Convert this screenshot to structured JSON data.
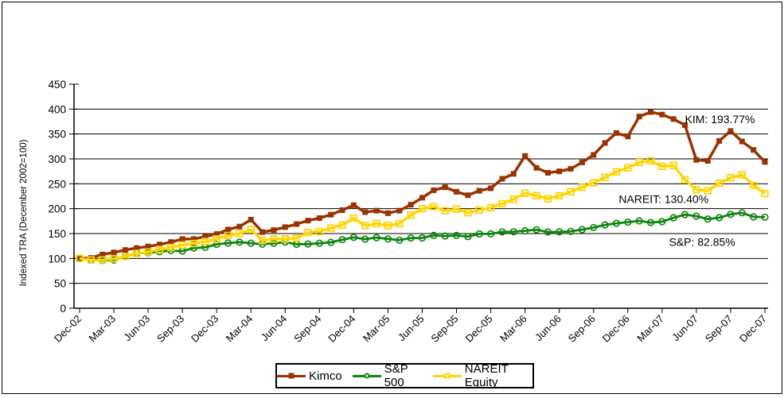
{
  "figure": {
    "background": "#FFFFFF",
    "border_color": "#000000",
    "axis_color": "#000000",
    "gridline_color": "#000000"
  },
  "chart_data": {
    "type": "line",
    "title": "",
    "xlabel": "",
    "ylabel": "Indexed TRA (December 2002=100)",
    "ylim": [
      0,
      450
    ],
    "yticks": [
      0,
      50,
      100,
      150,
      200,
      250,
      300,
      350,
      400,
      450
    ],
    "xtick_labels": [
      "Dec-02",
      "Mar-03",
      "Jun-03",
      "Sep-03",
      "Dec-03",
      "Mar-04",
      "Jun-04",
      "Sep-04",
      "Dec-04",
      "Mar-05",
      "Jun-05",
      "Sep-05",
      "Dec-05",
      "Mar-06",
      "Jun-06",
      "Sep-06",
      "Dec-06",
      "Mar-07",
      "Jun-07",
      "Sep-07",
      "Dec-07"
    ],
    "x_months_per_point": 1,
    "grid": "horizontal",
    "legend_position": "bottom-center",
    "series": [
      {
        "name": "Kimco",
        "color": "#993300",
        "marker": "filled-square",
        "values": [
          100,
          101,
          108,
          112,
          117,
          121,
          124,
          128,
          133,
          139,
          139,
          144,
          149,
          158,
          164,
          178,
          153,
          157,
          163,
          169,
          176,
          181,
          188,
          197,
          207,
          193,
          196,
          191,
          196,
          208,
          222,
          237,
          243,
          234,
          227,
          236,
          241,
          260,
          270,
          306,
          282,
          272,
          275,
          280,
          293,
          308,
          332,
          352,
          345,
          385,
          394,
          389,
          380,
          368,
          298,
          296,
          336,
          356,
          335,
          318,
          293.77
        ]
      },
      {
        "name": "S&P 500",
        "color": "#0B860B",
        "marker": "open-circle",
        "values": [
          100,
          97.4,
          95.9,
          96.8,
          104.8,
          110.3,
          111.6,
          113.6,
          115.8,
          114.6,
          121.1,
          122.2,
          128.5,
          130.9,
          132.7,
          130.7,
          128.6,
          130.4,
          132.9,
          128.5,
          129,
          130.4,
          132.4,
          137.7,
          142.4,
          138.9,
          141.8,
          139.3,
          136.7,
          141.1,
          141.2,
          146.4,
          145.1,
          146.3,
          143.8,
          149.3,
          149.4,
          153.3,
          153.7,
          155.6,
          157.7,
          153.2,
          153.4,
          154.3,
          158,
          162.1,
          167.4,
          170.6,
          173,
          175.6,
          172.1,
          174,
          181.7,
          188.1,
          184.9,
          179.2,
          181.9,
          188.6,
          191.6,
          183.6,
          182.85
        ]
      },
      {
        "name": "NAREIT Equity",
        "color": "#FFD400",
        "marker": "open-square",
        "values": [
          100,
          97,
          97,
          99,
          104,
          110,
          113,
          118,
          122,
          127,
          130,
          134,
          139,
          146,
          150,
          158,
          136,
          139,
          139,
          141,
          152,
          154,
          161,
          167,
          181,
          166,
          170,
          166,
          170,
          187,
          200,
          204,
          196,
          199,
          192,
          197,
          202,
          210,
          219,
          231,
          226,
          220,
          226,
          234,
          243,
          252,
          263,
          274,
          282,
          293,
          296,
          285,
          287,
          258,
          238,
          236,
          251,
          262,
          268,
          247,
          230.4
        ]
      }
    ],
    "annotations": [
      {
        "text": "KIM: 193.77%",
        "month": 53.0,
        "value": 380
      },
      {
        "text": "NAREIT: 130.40%",
        "month": 47.2,
        "value": 219
      },
      {
        "text": "S&P: 82.85%",
        "month": 51.6,
        "value": 133
      }
    ]
  }
}
